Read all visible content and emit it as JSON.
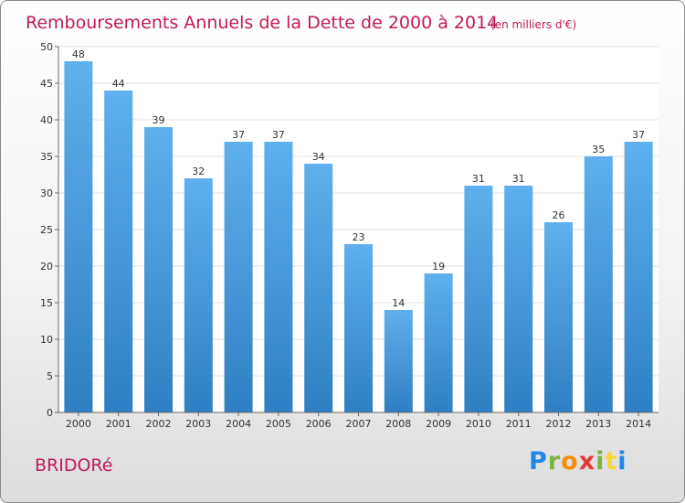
{
  "chart_data": {
    "type": "bar",
    "title": "Remboursements Annuels de la Dette de 2000 à 2014",
    "subtitle": "(en milliers d'€)",
    "categories": [
      "2000",
      "2001",
      "2002",
      "2003",
      "2004",
      "2005",
      "2006",
      "2007",
      "2008",
      "2009",
      "2010",
      "2011",
      "2012",
      "2013",
      "2014"
    ],
    "values": [
      48,
      44,
      39,
      32,
      37,
      37,
      34,
      23,
      14,
      19,
      31,
      31,
      26,
      35,
      37
    ],
    "ylim": [
      0,
      50
    ],
    "yticks": [
      0,
      5,
      10,
      15,
      20,
      25,
      30,
      35,
      40,
      45,
      50
    ],
    "grid": true,
    "legend": "none",
    "xlabel": "",
    "ylabel": ""
  },
  "commune": "BRIDORé",
  "brand": {
    "letters": [
      "P",
      "r",
      "o",
      "x",
      "i",
      "t",
      "i"
    ],
    "colors": [
      "#1e88e5",
      "#7cb342",
      "#fb8c00",
      "#e53935",
      "#7cb342",
      "#fdd835",
      "#1e88e5"
    ]
  },
  "colors": {
    "accent": "#c2185b",
    "bar_top": "#5fb0ee",
    "bar_bottom": "#2f7fc4"
  }
}
